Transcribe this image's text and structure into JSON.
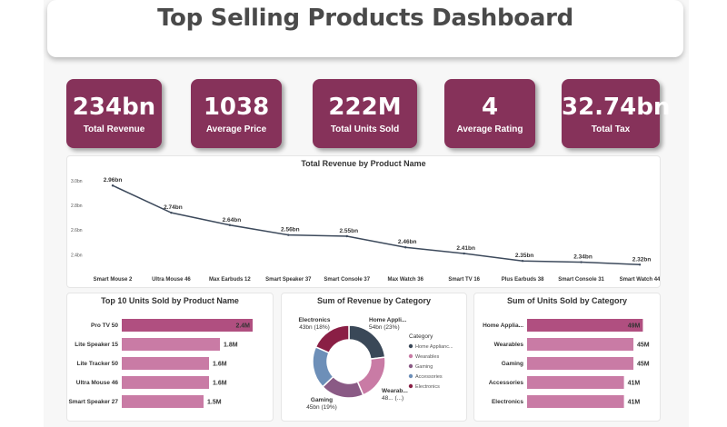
{
  "header": {
    "title": "Top Selling Products Dashboard"
  },
  "kpis": [
    {
      "value": "234bn",
      "label": "Total Revenue"
    },
    {
      "value": "1038",
      "label": "Average Price"
    },
    {
      "value": "222M",
      "label": "Total Units Sold"
    },
    {
      "value": "4",
      "label": "Average Rating"
    },
    {
      "value": "32.74bn",
      "label": "Total Tax"
    }
  ],
  "colors": {
    "kpi_bg": "#86325a",
    "line": "#3d4a5c",
    "bar": "#c97ba5",
    "bar_top": "#b04f80"
  },
  "chart_data": [
    {
      "type": "line",
      "title": "Total Revenue by Product Name",
      "categories": [
        "Smart Mouse 2",
        "Ultra Mouse 46",
        "Max Earbuds 12",
        "Smart Speaker 37",
        "Smart Console 37",
        "Max Watch 36",
        "Smart TV 16",
        "Plus Earbuds 38",
        "Smart Console 31",
        "Smart Watch 44"
      ],
      "values": [
        2.96,
        2.74,
        2.64,
        2.56,
        2.55,
        2.46,
        2.41,
        2.35,
        2.34,
        2.32
      ],
      "labels": [
        "2.96bn",
        "2.74bn",
        "2.64bn",
        "2.56bn",
        "2.55bn",
        "2.46bn",
        "2.41bn",
        "2.35bn",
        "2.34bn",
        "2.32bn"
      ],
      "yticks": [
        "3.0bn",
        "2.8bn",
        "2.6bn",
        "2.4bn"
      ],
      "ytick_values": [
        3.0,
        2.8,
        2.6,
        2.4
      ],
      "ylim": [
        2.3,
        3.05
      ]
    },
    {
      "type": "bar",
      "title": "Top 10 Units Sold by Product Name",
      "categories": [
        "Pro TV 50",
        "Lite Speaker 15",
        "Lite Tracker 50",
        "Ultra Mouse 46",
        "Smart Speaker 27"
      ],
      "values": [
        2.4,
        1.8,
        1.6,
        1.6,
        1.5
      ],
      "labels": [
        "2.4M",
        "1.8M",
        "1.6M",
        "1.6M",
        "1.5M"
      ],
      "xlim": [
        0,
        2.5
      ]
    },
    {
      "type": "pie",
      "title": "Sum of Revenue by Category",
      "legend_title": "Category",
      "slices": [
        {
          "name": "Home Appliances",
          "legend": "Home Applianc...",
          "value": 54,
          "label": "Home Appli...",
          "sub": "54bn (23%)",
          "color": "#3a4858"
        },
        {
          "name": "Wearables",
          "legend": "Wearables",
          "value": 48,
          "label": "Wearab...",
          "sub": "48... (...)",
          "color": "#c97ba5"
        },
        {
          "name": "Gaming",
          "legend": "Gaming",
          "value": 45,
          "label": "Gaming",
          "sub": "45bn (19%)",
          "color": "#8a5a85"
        },
        {
          "name": "Accessories",
          "legend": "Accessories",
          "value": 44,
          "label": "",
          "sub": "",
          "color": "#6d8fb8"
        },
        {
          "name": "Electronics",
          "legend": "Electronics",
          "value": 43,
          "label": "Electronics",
          "sub": "43bn (18%)",
          "color": "#8a1f45"
        }
      ]
    },
    {
      "type": "bar",
      "title": "Sum of Units Sold by Category",
      "categories": [
        "Home Applia...",
        "Wearables",
        "Gaming",
        "Accessories",
        "Electronics"
      ],
      "values": [
        49,
        45,
        45,
        41,
        41
      ],
      "labels": [
        "49M",
        "45M",
        "45M",
        "41M",
        "41M"
      ],
      "xlim": [
        0,
        50
      ]
    }
  ]
}
